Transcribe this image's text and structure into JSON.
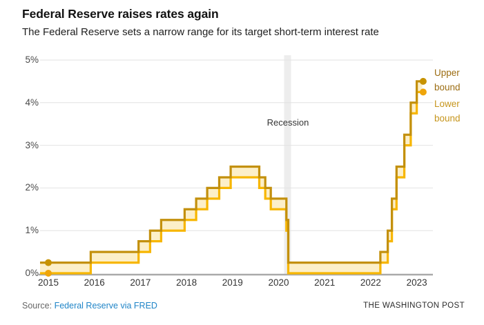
{
  "header": {
    "title": "Federal Reserve raises rates again",
    "subtitle": "The Federal Reserve sets a narrow range for its target short-term interest rate"
  },
  "footer": {
    "source_prefix": "Source:",
    "source_link": "Federal Reserve via FRED",
    "brand": "THE WASHINGTON POST"
  },
  "chart_data": {
    "type": "area",
    "subtype": "step-range",
    "title": "Federal Reserve target short-term interest rate range",
    "xlabel": "",
    "ylabel": "",
    "x_ticks": [
      "2015",
      "2016",
      "2017",
      "2018",
      "2019",
      "2020",
      "2021",
      "2022",
      "2023"
    ],
    "y_ticks": [
      "0%",
      "1%",
      "2%",
      "3%",
      "4%",
      "5%"
    ],
    "ylim": [
      0,
      5
    ],
    "xlim": [
      2014.82,
      2023.35
    ],
    "grid": "horizontal",
    "legend_position": "right",
    "legend": [
      {
        "label": "Upper bound",
        "color": "#9c6d12"
      },
      {
        "label": "Lower bound",
        "color": "#c6951c"
      }
    ],
    "recession": {
      "label": "Recession",
      "start": 2020.12,
      "end": 2020.27
    },
    "steps_note": "each entry = [decimal_year_of_change, lower_bound_%, upper_bound_%]",
    "steps": [
      [
        2014.82,
        0.0,
        0.25
      ],
      [
        2015.92,
        0.25,
        0.5
      ],
      [
        2016.96,
        0.5,
        0.75
      ],
      [
        2017.21,
        0.75,
        1.0
      ],
      [
        2017.45,
        1.0,
        1.25
      ],
      [
        2017.96,
        1.25,
        1.5
      ],
      [
        2018.21,
        1.5,
        1.75
      ],
      [
        2018.45,
        1.75,
        2.0
      ],
      [
        2018.71,
        2.0,
        2.25
      ],
      [
        2018.96,
        2.25,
        2.5
      ],
      [
        2019.58,
        2.0,
        2.25
      ],
      [
        2019.71,
        1.75,
        2.0
      ],
      [
        2019.83,
        1.5,
        1.75
      ],
      [
        2020.17,
        1.0,
        1.25
      ],
      [
        2020.21,
        0.0,
        0.25
      ],
      [
        2022.21,
        0.25,
        0.5
      ],
      [
        2022.37,
        0.75,
        1.0
      ],
      [
        2022.46,
        1.5,
        1.75
      ],
      [
        2022.56,
        2.25,
        2.5
      ],
      [
        2022.73,
        3.0,
        3.25
      ],
      [
        2022.87,
        3.75,
        4.0
      ],
      [
        2023.0,
        4.25,
        4.5
      ]
    ],
    "end_year": 2023.12,
    "markers": [
      {
        "year": 2015.0,
        "value": 0.25,
        "series": "upper"
      },
      {
        "year": 2015.0,
        "value": 0.0,
        "series": "lower"
      },
      {
        "year": 2023.14,
        "value": 4.5,
        "series": "upper"
      },
      {
        "year": 2023.14,
        "value": 4.25,
        "series": "lower"
      }
    ],
    "colors": {
      "upper_line": "#c3900d",
      "lower_line": "#f7b600",
      "fill": "#fcefc9",
      "upper_dot": "#c79200",
      "lower_dot": "#efa50a",
      "recession_band": "#ededed",
      "grid": "#e2e2e2",
      "axis": "#a9a9a9",
      "link": "#1f84c7"
    }
  }
}
